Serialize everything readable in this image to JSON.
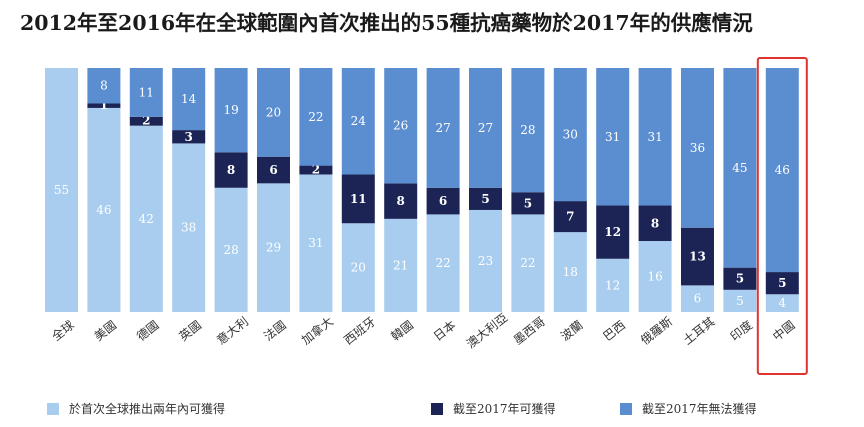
{
  "chart_data": {
    "type": "bar",
    "stacked": true,
    "title": "2012年至2016年在全球範圍內首次推出的55種抗癌藥物於2017年的供應情況",
    "categories": [
      "全球",
      "美國",
      "德國",
      "英國",
      "意大利",
      "法國",
      "加拿大",
      "西班牙",
      "韓國",
      "日本",
      "澳大利亞",
      "墨西哥",
      "波蘭",
      "巴西",
      "俄羅斯",
      "土耳其",
      "印度",
      "中國"
    ],
    "series": [
      {
        "name": "於首次全球推出兩年內可獲得",
        "color": "#a9cdef",
        "values": [
          55,
          46,
          42,
          38,
          28,
          29,
          31,
          20,
          21,
          22,
          23,
          22,
          18,
          12,
          16,
          6,
          5,
          4
        ]
      },
      {
        "name": "截至2017年可獲得",
        "color": "#1b2454",
        "values": [
          0,
          1,
          2,
          3,
          8,
          6,
          2,
          11,
          8,
          6,
          5,
          5,
          7,
          12,
          8,
          13,
          5,
          5
        ]
      },
      {
        "name": "截至2017年無法獲得",
        "color": "#5b8ed0",
        "values": [
          0,
          8,
          11,
          14,
          19,
          20,
          22,
          24,
          26,
          27,
          27,
          28,
          30,
          31,
          31,
          36,
          45,
          46
        ]
      }
    ],
    "ylim": [
      0,
      55
    ],
    "highlight": "中國",
    "highlight_color": "#e0322f",
    "label_light": "#ffffff",
    "label_dark": "#ffffff"
  }
}
